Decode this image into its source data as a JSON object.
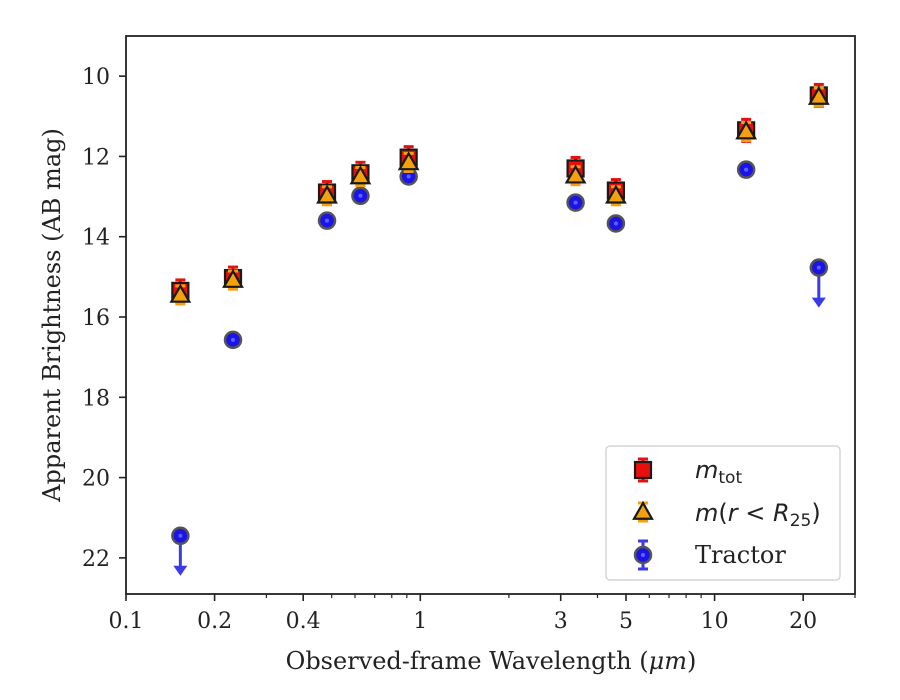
{
  "chart_data": {
    "type": "scatter",
    "xlabel_prefix": "Observed-frame Wavelength (",
    "xlabel_unit": "μm",
    "xlabel_suffix": ")",
    "ylabel": "Apparent Brightness (AB mag)",
    "x_scale": "log",
    "xlim": [
      0.1,
      30
    ],
    "ylim": [
      22.9,
      9.0
    ],
    "y_inverted": true,
    "grid": false,
    "legend_position": "bottom-right",
    "x_ticks": [
      0.1,
      0.2,
      0.4,
      1,
      3,
      5,
      10,
      20
    ],
    "x_tick_labels": [
      "0.1",
      "0.2",
      "0.4",
      "1",
      "3",
      "5",
      "10",
      "20"
    ],
    "y_ticks": [
      10,
      12,
      14,
      16,
      18,
      20,
      22
    ],
    "y_tick_labels": [
      "10",
      "12",
      "14",
      "16",
      "18",
      "20",
      "22"
    ],
    "series": [
      {
        "key": "mtot",
        "legend_base": "m",
        "legend_sub": "tot",
        "marker": "square",
        "color": "#e8100c",
        "errcolor": "#e8100c",
        "points": [
          {
            "x": 0.153,
            "y": 15.35
          },
          {
            "x": 0.231,
            "y": 15.03
          },
          {
            "x": 0.482,
            "y": 12.9
          },
          {
            "x": 0.626,
            "y": 12.42
          },
          {
            "x": 0.913,
            "y": 12.03
          },
          {
            "x": 3.37,
            "y": 12.3
          },
          {
            "x": 4.62,
            "y": 12.85
          },
          {
            "x": 12.8,
            "y": 11.35
          },
          {
            "x": 22.6,
            "y": 10.48
          }
        ]
      },
      {
        "key": "mr25",
        "legend_base": "m",
        "legend_paren_open": "(",
        "legend_r": "r",
        "legend_lt": " < ",
        "legend_R": "R",
        "legend_sub": "25",
        "legend_paren_close": ")",
        "marker": "triangle",
        "color": "#f5a00c",
        "errcolor": "#f5a00c",
        "points": [
          {
            "x": 0.153,
            "y": 15.45
          },
          {
            "x": 0.231,
            "y": 15.08
          },
          {
            "x": 0.482,
            "y": 12.98
          },
          {
            "x": 0.626,
            "y": 12.5
          },
          {
            "x": 0.913,
            "y": 12.15
          },
          {
            "x": 3.37,
            "y": 12.48
          },
          {
            "x": 4.62,
            "y": 12.98
          },
          {
            "x": 12.8,
            "y": 11.38
          },
          {
            "x": 22.6,
            "y": 10.52
          }
        ]
      },
      {
        "key": "tractor",
        "legend": "Tractor",
        "marker": "circle",
        "color": "#1a14e6",
        "errcolor": "#3a3ae8",
        "points": [
          {
            "x": 0.153,
            "y": 21.45,
            "upper_limit": true
          },
          {
            "x": 0.231,
            "y": 16.57
          },
          {
            "x": 0.482,
            "y": 13.6
          },
          {
            "x": 0.626,
            "y": 12.98
          },
          {
            "x": 0.913,
            "y": 12.5
          },
          {
            "x": 3.37,
            "y": 13.15
          },
          {
            "x": 4.62,
            "y": 13.67
          },
          {
            "x": 12.8,
            "y": 12.33
          },
          {
            "x": 22.6,
            "y": 14.77,
            "upper_limit": true
          }
        ]
      }
    ]
  }
}
